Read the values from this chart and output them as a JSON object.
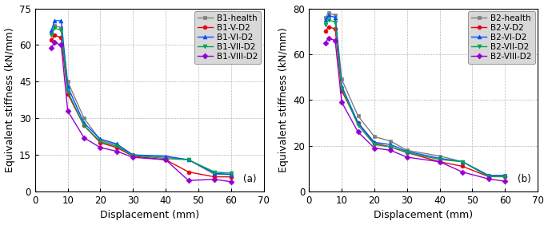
{
  "panel_a": {
    "title": "(a)",
    "xlabel": "Displacement (mm)",
    "ylabel": "Equivalent stiffness (kN/mm)",
    "xlim": [
      0,
      70
    ],
    "ylim": [
      0,
      75
    ],
    "xticks": [
      0,
      10,
      20,
      30,
      40,
      50,
      60,
      70
    ],
    "yticks": [
      0,
      15,
      30,
      45,
      60,
      75
    ],
    "series": [
      {
        "label": "B1-health",
        "color": "#808080",
        "marker": "s",
        "x": [
          5,
          6,
          8,
          10,
          15,
          20,
          25,
          30,
          40,
          47,
          55,
          60
        ],
        "y": [
          65,
          68,
          67,
          45,
          30,
          21,
          19,
          15,
          14,
          13,
          7,
          7
        ]
      },
      {
        "label": "B1-V-D2",
        "color": "#e8000d",
        "marker": "o",
        "x": [
          5,
          6,
          8,
          10,
          15,
          20,
          25,
          30,
          40,
          47,
          55,
          60
        ],
        "y": [
          62,
          64,
          63,
          40,
          27,
          20,
          18,
          14.5,
          13,
          8,
          6,
          6
        ]
      },
      {
        "label": "B1-VI-D2",
        "color": "#0050ff",
        "marker": "^",
        "x": [
          5,
          6,
          8,
          10,
          15,
          20,
          25,
          30,
          40,
          47,
          55,
          60
        ],
        "y": [
          66,
          70,
          70,
          43,
          28,
          21.5,
          19.5,
          15,
          14.5,
          13,
          7.5,
          7
        ]
      },
      {
        "label": "B1-VII-D2",
        "color": "#00a550",
        "marker": "v",
        "x": [
          5,
          6,
          8,
          10,
          15,
          20,
          25,
          30,
          40,
          47,
          55,
          60
        ],
        "y": [
          64,
          67,
          66,
          41,
          27,
          20.5,
          18.5,
          14.8,
          13.5,
          13,
          8,
          7.5
        ]
      },
      {
        "label": "B1-VIII-D2",
        "color": "#9400d3",
        "marker": "D",
        "x": [
          5,
          6,
          8,
          10,
          15,
          20,
          25,
          30,
          40,
          47,
          55,
          60
        ],
        "y": [
          59,
          61,
          60,
          33,
          22,
          18,
          16.5,
          14,
          13,
          4.5,
          5,
          4
        ]
      }
    ]
  },
  "panel_b": {
    "title": "(b)",
    "xlabel": "Displacement (mm)",
    "ylabel": "Equivalent stiffness (kN/mm)",
    "xlim": [
      0,
      70
    ],
    "ylim": [
      0,
      80
    ],
    "xticks": [
      0,
      10,
      20,
      30,
      40,
      50,
      60,
      70
    ],
    "yticks": [
      0,
      20,
      40,
      60,
      80
    ],
    "series": [
      {
        "label": "B2-health",
        "color": "#808080",
        "marker": "s",
        "x": [
          5,
          6,
          8,
          10,
          15,
          20,
          25,
          30,
          40,
          47,
          55,
          60
        ],
        "y": [
          76,
          78,
          77,
          49,
          33,
          24,
          22,
          18,
          15.5,
          13,
          7,
          7
        ]
      },
      {
        "label": "B2-V-D2",
        "color": "#e8000d",
        "marker": "o",
        "x": [
          5,
          6,
          8,
          10,
          15,
          20,
          25,
          30,
          40,
          47,
          55,
          60
        ],
        "y": [
          70,
          72,
          71,
          44,
          30,
          21,
          19.5,
          17,
          13,
          11,
          6.5,
          6.5
        ]
      },
      {
        "label": "B2-VI-D2",
        "color": "#0050ff",
        "marker": "^",
        "x": [
          5,
          6,
          8,
          10,
          15,
          20,
          25,
          30,
          40,
          47,
          55,
          60
        ],
        "y": [
          75,
          77,
          76,
          46,
          30,
          21.5,
          20.5,
          17.5,
          14.5,
          13,
          7,
          7
        ]
      },
      {
        "label": "B2-VII-D2",
        "color": "#00a550",
        "marker": "v",
        "x": [
          5,
          6,
          8,
          10,
          15,
          20,
          25,
          30,
          40,
          47,
          55,
          60
        ],
        "y": [
          73,
          75,
          74,
          45,
          29,
          20.5,
          19.5,
          17,
          14,
          13,
          6.5,
          6.5
        ]
      },
      {
        "label": "B2-VIII-D2",
        "color": "#9400d3",
        "marker": "D",
        "x": [
          5,
          6,
          8,
          10,
          15,
          20,
          25,
          30,
          40,
          47,
          55,
          60
        ],
        "y": [
          65,
          67,
          66,
          39,
          26,
          19,
          18,
          15,
          13,
          8.5,
          5.5,
          4.5
        ]
      }
    ]
  },
  "bg_color": "#ffffff",
  "grid_color": "#b0b0b0",
  "font_size": 8.5,
  "label_font_size": 9,
  "legend_font_size": 7.5,
  "marker_size": 3.5,
  "line_width": 1.0
}
